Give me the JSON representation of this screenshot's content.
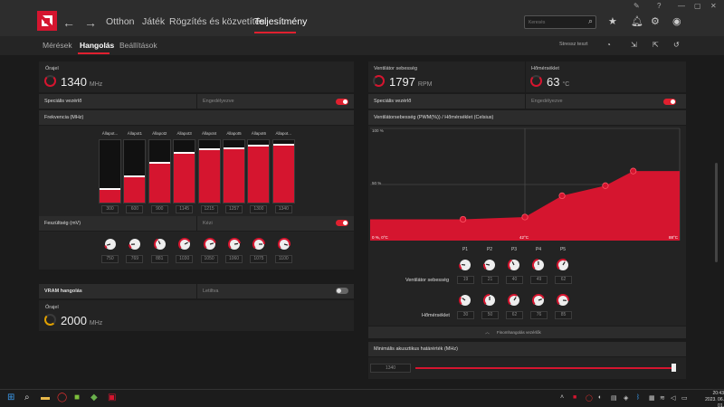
{
  "nav": {
    "tabs": [
      "Otthon",
      "Játék",
      "Rögzítés és közvetítés",
      "Teljesítmény"
    ],
    "search_placeholder": "Keresés"
  },
  "subnav": {
    "tabs": [
      "Mérések",
      "Hangolás",
      "Beállítások"
    ],
    "stress_test_label": "Stressz teszt"
  },
  "left": {
    "clock": {
      "label": "Órajel",
      "value": "1340",
      "unit": "MHz"
    },
    "special_control": {
      "label": "Speciális vezérlő",
      "state": "Engedélyezve"
    },
    "frequency": {
      "title": "Frekvencia (MHz)",
      "states": [
        "Állapot...",
        "Állapot1",
        "Állapot2",
        "Állapot3",
        "Állapot4",
        "Állapot5",
        "Állapot6",
        "Állapot..."
      ],
      "values": [
        "300",
        "600",
        "900",
        "1145",
        "1215",
        "1257",
        "1300",
        "1340"
      ]
    },
    "voltage": {
      "label": "Feszültség (mV)",
      "state": "Kézi",
      "values": [
        "750",
        "769",
        "881",
        "1030",
        "1050",
        "1060",
        "1075",
        "1100"
      ]
    },
    "vram": {
      "label": "VRAM hangolás",
      "state": "Letiltva"
    },
    "vram_clock": {
      "label": "Órajel",
      "value": "2000",
      "unit": "MHz"
    }
  },
  "right": {
    "fan_speed": {
      "label": "Ventilátor sebesség",
      "value": "1797",
      "unit": "RPM"
    },
    "temperature": {
      "label": "Hőmérséklet",
      "value": "63",
      "unit": "°C"
    },
    "special_control": {
      "label": "Speciális vezérlő",
      "state": "Engedélyezve"
    },
    "fan_curve": {
      "title": "Ventilátorsebesség (PWM(%)) / Hőmérséklet (Celsius)",
      "y_top": "100 %",
      "y_mid": "50 %",
      "x_left": "0 %, 0°C",
      "x_mid": "42°C",
      "x_right": "88°C"
    },
    "points": {
      "headers": [
        "P1",
        "P2",
        "P3",
        "P4",
        "P5"
      ],
      "fan_label": "Ventilátor sebesség",
      "fan_values": [
        "19",
        "21",
        "40",
        "49",
        "62"
      ],
      "temp_label": "Hőmérséklet",
      "temp_values": [
        "30",
        "50",
        "62",
        "76",
        "85"
      ]
    },
    "zero_fan_label": "Finomhangolás vezérlők",
    "min_acoustic": {
      "label": "Minimális akusztikus határérték (MHz)",
      "value": "1340"
    }
  },
  "chart_data": {
    "type": "area",
    "title": "Ventilátorsebesség (PWM(%)) / Hőmérséklet (Celsius)",
    "xlabel": "",
    "ylabel": "",
    "x": [
      0,
      30,
      50,
      62,
      76,
      85,
      100
    ],
    "y": [
      19,
      19,
      21,
      40,
      49,
      62,
      62
    ],
    "points": [
      [
        30,
        19
      ],
      [
        50,
        21
      ],
      [
        62,
        40
      ],
      [
        76,
        49
      ],
      [
        85,
        62
      ]
    ],
    "ylim": [
      0,
      100
    ],
    "color": "#d5152f"
  },
  "taskbar": {
    "clock_time": "20:43",
    "clock_date": "2023. 06. 01."
  },
  "colors": {
    "accent": "#d5152f",
    "background": "#1b1b1b"
  }
}
